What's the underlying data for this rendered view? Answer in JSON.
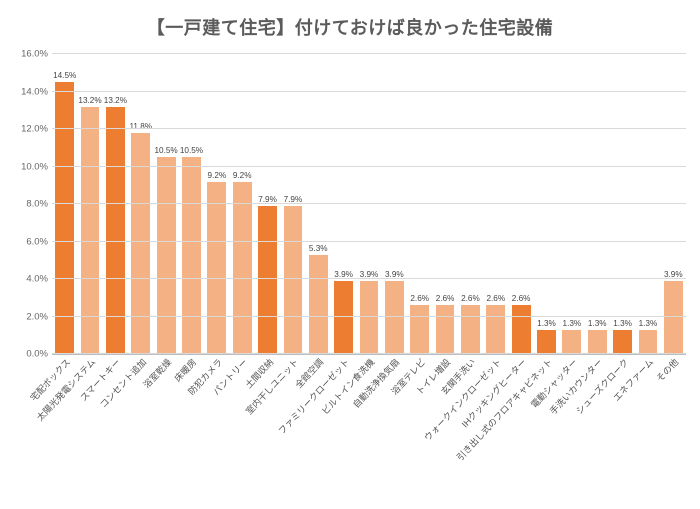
{
  "chart": {
    "type": "bar",
    "title": "【一戸建て住宅】付けておけば良かった住宅設備",
    "title_color": "#5b5b5b",
    "title_fontsize": 18,
    "background_color": "#ffffff",
    "grid_color": "#d9d9d9",
    "axis_font_color": "#666666",
    "value_label_color": "#444444",
    "xlabel_color": "#555555",
    "value_label_fontsize": 8.2,
    "xlabel_fontsize": 9,
    "yaxis_label_fontsize": 9.5,
    "bar_width_rel": 0.74,
    "colors": {
      "highlight": "#ed7d31",
      "normal": "#f4b183"
    },
    "xlabel_rotation_deg": -47,
    "yaxis": {
      "min": 0.0,
      "max": 16.0,
      "tick_step": 2.0,
      "format": "{v}.0%"
    },
    "categories": [
      {
        "label": "宅配ボックス",
        "value": 14.5,
        "highlight": true
      },
      {
        "label": "太陽光発電システム",
        "value": 13.2,
        "highlight": false
      },
      {
        "label": "スマートキー",
        "value": 13.2,
        "highlight": true
      },
      {
        "label": "コンセント追加",
        "value": 11.8,
        "highlight": false
      },
      {
        "label": "浴室乾燥",
        "value": 10.5,
        "highlight": false
      },
      {
        "label": "床暖房",
        "value": 10.5,
        "highlight": false
      },
      {
        "label": "防犯カメラ",
        "value": 9.2,
        "highlight": false
      },
      {
        "label": "パントリー",
        "value": 9.2,
        "highlight": false
      },
      {
        "label": "土間収納",
        "value": 7.9,
        "highlight": true
      },
      {
        "label": "室内干しユニット",
        "value": 7.9,
        "highlight": false
      },
      {
        "label": "全館空調",
        "value": 5.3,
        "highlight": false
      },
      {
        "label": "ファミリークローゼット",
        "value": 3.9,
        "highlight": true
      },
      {
        "label": "ビルトイン食洗機",
        "value": 3.9,
        "highlight": false
      },
      {
        "label": "自動洗浄換気扇",
        "value": 3.9,
        "highlight": false
      },
      {
        "label": "浴室テレビ",
        "value": 2.6,
        "highlight": false
      },
      {
        "label": "トイレ増設",
        "value": 2.6,
        "highlight": false
      },
      {
        "label": "玄関手洗い",
        "value": 2.6,
        "highlight": false
      },
      {
        "label": "ウォークインクローゼット",
        "value": 2.6,
        "highlight": false
      },
      {
        "label": "IHクッキングヒーター",
        "value": 2.6,
        "highlight": true
      },
      {
        "label": "引き出し式のフロアキャビネット",
        "value": 1.3,
        "highlight": true
      },
      {
        "label": "電動シャッター",
        "value": 1.3,
        "highlight": false
      },
      {
        "label": "手洗いカウンター",
        "value": 1.3,
        "highlight": false
      },
      {
        "label": "シューズクローク",
        "value": 1.3,
        "highlight": true
      },
      {
        "label": "エネファーム",
        "value": 1.3,
        "highlight": false
      },
      {
        "label": "その他",
        "value": 3.9,
        "highlight": false
      }
    ]
  }
}
